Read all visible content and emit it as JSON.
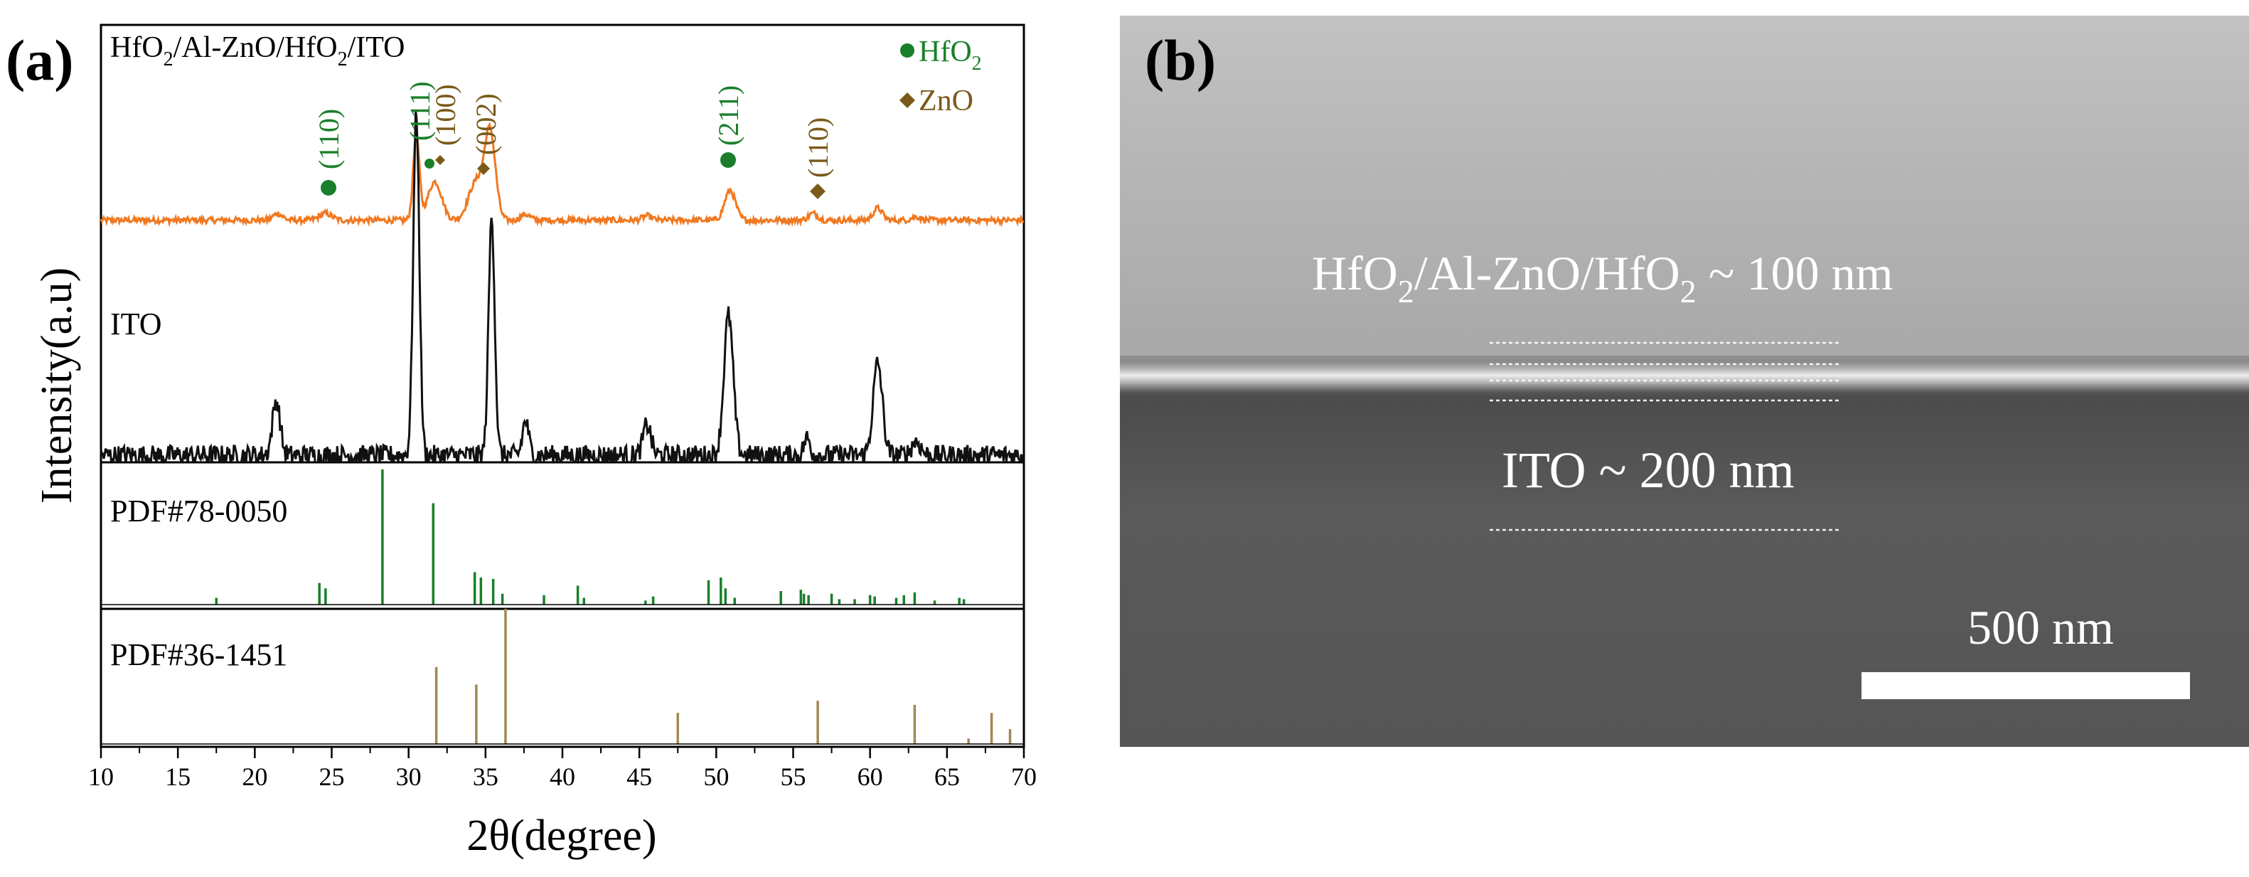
{
  "panel_a": {
    "panel_label": "(a)",
    "xlabel": "2θ(degree)",
    "ylabel": "Intensity(a.u)",
    "xticks": [
      "10",
      "15",
      "20",
      "25",
      "30",
      "35",
      "40",
      "45",
      "50",
      "55",
      "60",
      "65",
      "70"
    ],
    "legend": {
      "hfo2_label": "HfO",
      "hfo2_sub": "2",
      "zno_label": "ZnO"
    },
    "sample_label": {
      "p1": "HfO",
      "s1": "2",
      "p2": "/Al-ZnO/HfO",
      "s2": "2",
      "p3": "/ITO"
    },
    "ito_label": "ITO",
    "pdf1_label": "PDF#78-0050",
    "pdf2_label": "PDF#36-1451",
    "peak_labels": {
      "hfo2_110": "(110)",
      "hfo2_111": "(111)",
      "zno_100": "(100)",
      "zno_002": "(002)",
      "hfo2_211": "(211)",
      "zno_110": "(110)"
    },
    "colors": {
      "sample": "#f07820",
      "ito": "#111111",
      "hfo2": "#1a7f2a",
      "zno": "#7a5a1a",
      "zno_ref": "#a08a50"
    }
  },
  "panel_b": {
    "panel_label": "(b)",
    "layer_label": {
      "p1": "HfO",
      "s1": "2",
      "p2": "/Al-ZnO/HfO",
      "s2": "2",
      "p3": " ~ 100 nm"
    },
    "ito_label": "ITO ~ 200 nm",
    "scale_bar_label": "500 nm"
  },
  "chart_data": {
    "type": "line",
    "xlim": [
      10,
      70
    ],
    "xlabel": "2θ(degree)",
    "ylabel": "Intensity(a.u)",
    "series": [
      {
        "name": "HfO2/Al-ZnO/HfO2/ITO",
        "noise": 0.035,
        "baseline": 0.02,
        "peaks": [
          [
            21.5,
            0.08,
            0.3
          ],
          [
            24.6,
            0.08,
            0.4
          ],
          [
            30.5,
            1.0,
            0.2
          ],
          [
            31.7,
            0.45,
            0.45
          ],
          [
            34.4,
            0.45,
            0.5
          ],
          [
            35.3,
            1.0,
            0.35
          ],
          [
            37.6,
            0.07,
            0.3
          ],
          [
            45.5,
            0.05,
            0.3
          ],
          [
            50.9,
            0.35,
            0.35
          ],
          [
            56.3,
            0.08,
            0.3
          ],
          [
            60.5,
            0.14,
            0.3
          ],
          [
            63.0,
            0.04,
            0.3
          ]
        ]
      },
      {
        "name": "ITO",
        "noise": 0.03,
        "baseline": 0.0,
        "peaks": [
          [
            21.4,
            0.16,
            0.25
          ],
          [
            30.5,
            1.0,
            0.2
          ],
          [
            35.4,
            0.7,
            0.2
          ],
          [
            37.6,
            0.1,
            0.2
          ],
          [
            45.5,
            0.09,
            0.25
          ],
          [
            50.8,
            0.41,
            0.3
          ],
          [
            55.9,
            0.05,
            0.2
          ],
          [
            60.5,
            0.27,
            0.3
          ],
          [
            63.0,
            0.04,
            0.3
          ]
        ]
      }
    ],
    "reference_patterns": [
      {
        "name": "PDF#78-0050",
        "color": "#1a7f2a",
        "lines": [
          [
            17.5,
            0.05
          ],
          [
            24.2,
            0.16
          ],
          [
            24.6,
            0.12
          ],
          [
            28.3,
            1.0
          ],
          [
            31.6,
            0.75
          ],
          [
            34.3,
            0.24
          ],
          [
            34.7,
            0.2
          ],
          [
            35.5,
            0.19
          ],
          [
            36.1,
            0.08
          ],
          [
            38.8,
            0.07
          ],
          [
            41.0,
            0.14
          ],
          [
            41.4,
            0.05
          ],
          [
            45.4,
            0.03
          ],
          [
            45.9,
            0.06
          ],
          [
            49.5,
            0.18
          ],
          [
            50.3,
            0.2
          ],
          [
            50.6,
            0.12
          ],
          [
            51.2,
            0.05
          ],
          [
            54.2,
            0.1
          ],
          [
            55.5,
            0.11
          ],
          [
            55.7,
            0.08
          ],
          [
            56.0,
            0.07
          ],
          [
            57.5,
            0.08
          ],
          [
            58.0,
            0.04
          ],
          [
            59.0,
            0.04
          ],
          [
            60.0,
            0.07
          ],
          [
            60.3,
            0.06
          ],
          [
            61.7,
            0.05
          ],
          [
            62.2,
            0.07
          ],
          [
            62.9,
            0.09
          ],
          [
            64.2,
            0.03
          ],
          [
            65.8,
            0.05
          ],
          [
            66.1,
            0.04
          ]
        ]
      },
      {
        "name": "PDF#36-1451",
        "color": "#a08a50",
        "lines": [
          [
            31.8,
            0.57
          ],
          [
            34.4,
            0.44
          ],
          [
            36.3,
            1.0
          ],
          [
            47.5,
            0.23
          ],
          [
            56.6,
            0.32
          ],
          [
            62.9,
            0.29
          ],
          [
            66.4,
            0.04
          ],
          [
            67.9,
            0.23
          ],
          [
            69.1,
            0.11
          ]
        ]
      }
    ]
  }
}
